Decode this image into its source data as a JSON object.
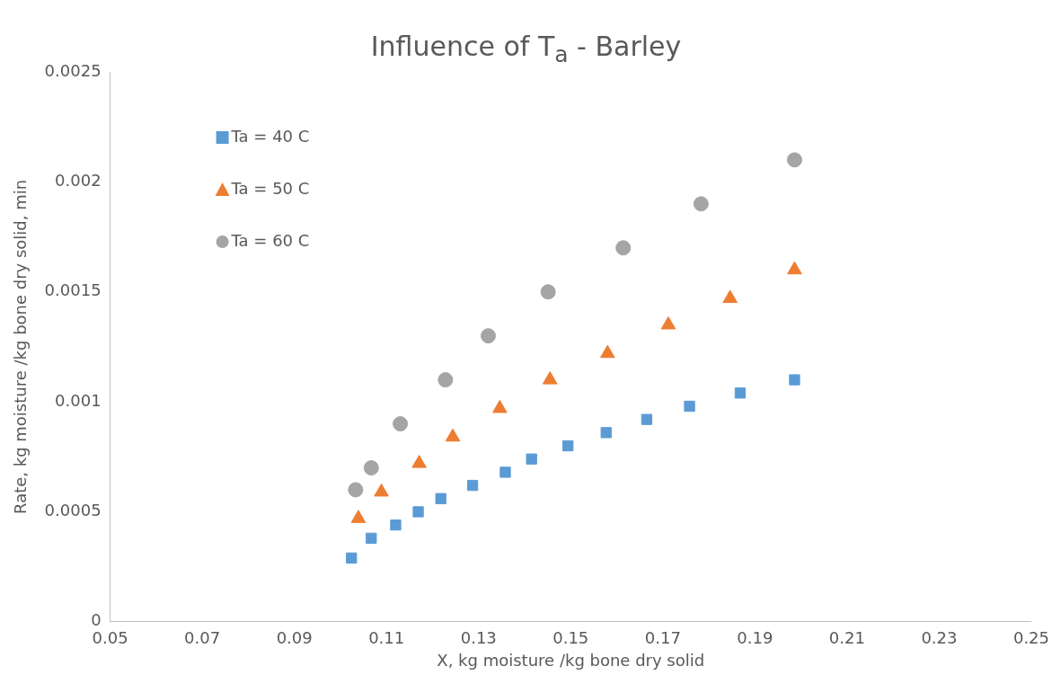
{
  "chart_data": {
    "type": "scatter",
    "title": "Influence of T$_{a}$ - Barley",
    "xlabel": "X, kg moisture /kg bone dry solid",
    "ylabel": "Rate, kg moisture /kg bone dry solid, min",
    "xlim": [
      0.05,
      0.25
    ],
    "xticks": [
      0.05,
      0.07,
      0.09,
      0.11,
      0.13,
      0.15,
      0.17,
      0.19,
      0.21,
      0.23,
      0.25
    ],
    "ylim": [
      0,
      0.0025
    ],
    "yticks": [
      0,
      0.0005,
      0.001,
      0.0015,
      0.002,
      0.0025
    ],
    "grid": false,
    "legend": "top left",
    "series": [
      {
        "name": "Ta = 40 C",
        "color": "#5b9bd5",
        "marker": "square",
        "x": [
          0.1024,
          0.1067,
          0.112,
          0.1169,
          0.1218,
          0.1287,
          0.1358,
          0.1415,
          0.1494,
          0.1577,
          0.1665,
          0.1758,
          0.1868,
          0.1986
        ],
        "values": [
          0.00029,
          0.00038,
          0.00044,
          0.0005,
          0.00056,
          0.00062,
          0.00068,
          0.00074,
          0.0008,
          0.00086,
          0.00092,
          0.00098,
          0.00104,
          0.0011
        ]
      },
      {
        "name": "Ta = 50 C",
        "color": "#ed7d31",
        "marker": "triangle",
        "x": [
          0.1039,
          0.1089,
          0.1171,
          0.1244,
          0.1346,
          0.1455,
          0.158,
          0.1712,
          0.1846,
          0.1986
        ],
        "values": [
          0.00047,
          0.00059,
          0.00072,
          0.00084,
          0.00097,
          0.0011,
          0.00122,
          0.00135,
          0.00147,
          0.0016
        ]
      },
      {
        "name": "Ta = 60 C",
        "color": "#a5a5a5",
        "marker": "circle",
        "x": [
          0.1033,
          0.1067,
          0.113,
          0.1228,
          0.1321,
          0.1451,
          0.1614,
          0.1783,
          0.1986
        ],
        "values": [
          0.0006,
          0.0007,
          0.0009,
          0.0011,
          0.0013,
          0.0015,
          0.0017,
          0.0019,
          0.0021
        ]
      }
    ]
  }
}
